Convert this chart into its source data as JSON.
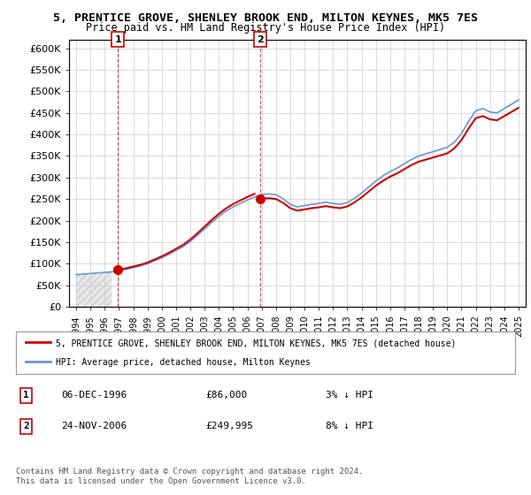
{
  "title": "5, PRENTICE GROVE, SHENLEY BROOK END, MILTON KEYNES, MK5 7ES",
  "subtitle": "Price paid vs. HM Land Registry's House Price Index (HPI)",
  "ylabel": "",
  "xlabel": "",
  "ylim": [
    0,
    620000
  ],
  "yticks": [
    0,
    50000,
    100000,
    150000,
    200000,
    250000,
    300000,
    350000,
    400000,
    450000,
    500000,
    550000,
    600000
  ],
  "ytick_labels": [
    "£0",
    "£50K",
    "£100K",
    "£150K",
    "£200K",
    "£250K",
    "£300K",
    "£350K",
    "£400K",
    "£450K",
    "£500K",
    "£550K",
    "£600K"
  ],
  "legend_line1": "5, PRENTICE GROVE, SHENLEY BROOK END, MILTON KEYNES, MK5 7ES (detached house)",
  "legend_line2": "HPI: Average price, detached house, Milton Keynes",
  "annotation1": {
    "num": "1",
    "date": "06-DEC-1996",
    "price": "£86,000",
    "pct": "3% ↓ HPI"
  },
  "annotation2": {
    "num": "2",
    "date": "24-NOV-2006",
    "price": "£249,995",
    "pct": "8% ↓ HPI"
  },
  "footnote": "Contains HM Land Registry data © Crown copyright and database right 2024.\nThis data is licensed under the Open Government Licence v3.0.",
  "sale_color": "#cc0000",
  "hpi_color": "#6699cc",
  "sale_marker_color": "#cc0000",
  "vline_color": "#cc0000",
  "bg_hatch_color": "#dddddd",
  "sale1_year": 1996.92,
  "sale1_price": 86000,
  "sale2_year": 2006.9,
  "sale2_price": 249995,
  "hpi_years": [
    1994,
    1994.5,
    1995,
    1995.5,
    1996,
    1996.5,
    1997,
    1997.5,
    1998,
    1998.5,
    1999,
    1999.5,
    2000,
    2000.5,
    2001,
    2001.5,
    2002,
    2002.5,
    2003,
    2003.5,
    2004,
    2004.5,
    2005,
    2005.5,
    2006,
    2006.5,
    2007,
    2007.5,
    2008,
    2008.5,
    2009,
    2009.5,
    2010,
    2010.5,
    2011,
    2011.5,
    2012,
    2012.5,
    2013,
    2013.5,
    2014,
    2014.5,
    2015,
    2015.5,
    2016,
    2016.5,
    2017,
    2017.5,
    2018,
    2018.5,
    2019,
    2019.5,
    2020,
    2020.5,
    2021,
    2021.5,
    2022,
    2022.5,
    2023,
    2023.5,
    2024,
    2024.5,
    2025
  ],
  "hpi_values": [
    75000,
    76000,
    77500,
    79000,
    80000,
    81500,
    84000,
    87000,
    91000,
    95000,
    100000,
    107000,
    114000,
    122000,
    131000,
    140000,
    152000,
    166000,
    181000,
    196000,
    210000,
    222000,
    232000,
    240000,
    248000,
    255000,
    261000,
    262000,
    260000,
    251000,
    238000,
    232000,
    235000,
    238000,
    240000,
    243000,
    240000,
    238000,
    242000,
    252000,
    264000,
    278000,
    292000,
    304000,
    314000,
    322000,
    332000,
    342000,
    350000,
    355000,
    360000,
    365000,
    370000,
    382000,
    402000,
    430000,
    455000,
    460000,
    452000,
    450000,
    460000,
    470000,
    480000
  ],
  "xtick_years": [
    1994,
    1995,
    1996,
    1997,
    1998,
    1999,
    2000,
    2001,
    2002,
    2003,
    2004,
    2005,
    2006,
    2007,
    2008,
    2009,
    2010,
    2011,
    2012,
    2013,
    2014,
    2015,
    2016,
    2017,
    2018,
    2019,
    2020,
    2021,
    2022,
    2023,
    2024,
    2025
  ],
  "xlim_min": 1993.5,
  "xlim_max": 2025.5
}
